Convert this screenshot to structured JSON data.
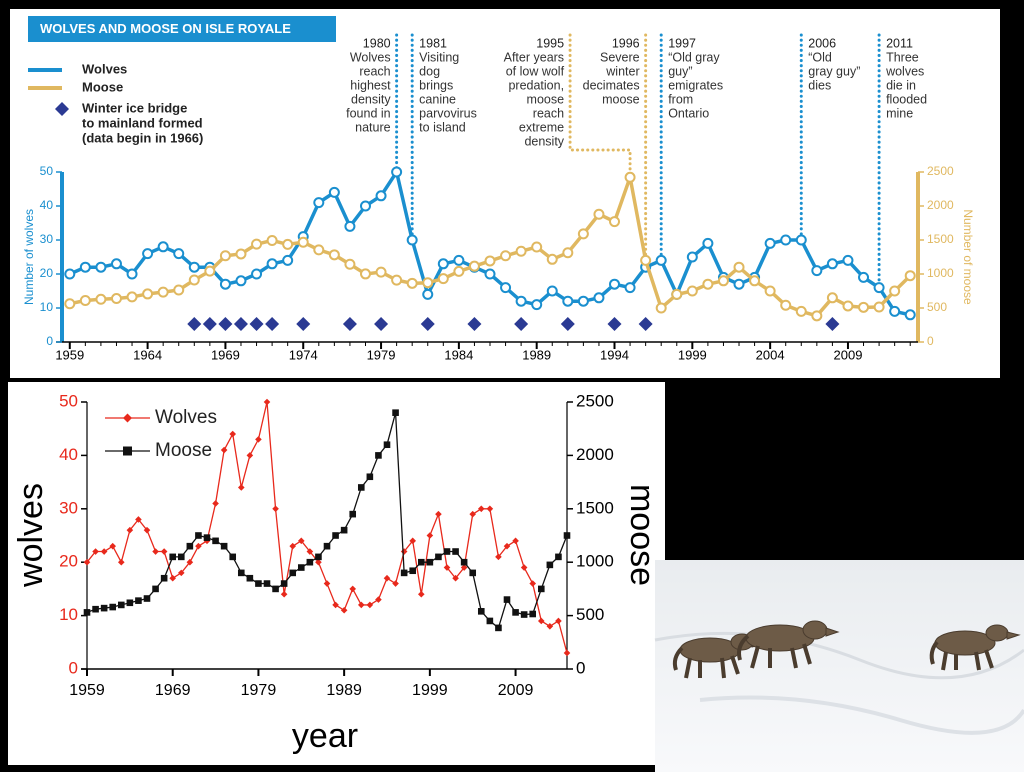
{
  "chart_data": [
    {
      "type": "line",
      "title": "WOLVES AND MOOSE ON ISLE ROYALE",
      "ylabel": "Number of wolves",
      "y2label": "Number of moose",
      "x": [
        1959,
        1960,
        1961,
        1962,
        1963,
        1964,
        1965,
        1966,
        1967,
        1968,
        1969,
        1970,
        1971,
        1972,
        1973,
        1974,
        1975,
        1976,
        1977,
        1978,
        1979,
        1980,
        1981,
        1982,
        1983,
        1984,
        1985,
        1986,
        1987,
        1988,
        1989,
        1990,
        1991,
        1992,
        1993,
        1994,
        1995,
        1996,
        1997,
        1998,
        1999,
        2000,
        2001,
        2002,
        2003,
        2004,
        2005,
        2006,
        2007,
        2008,
        2009,
        2010,
        2011,
        2012,
        2013
      ],
      "series": [
        {
          "name": "Wolves",
          "color": "#1a8fcf",
          "values": [
            20,
            22,
            22,
            23,
            20,
            26,
            28,
            26,
            22,
            22,
            17,
            18,
            20,
            23,
            24,
            31,
            41,
            44,
            34,
            40,
            43,
            50,
            30,
            14,
            23,
            24,
            22,
            20,
            16,
            12,
            11,
            15,
            12,
            12,
            13,
            17,
            16,
            22,
            24,
            14,
            25,
            29,
            19,
            17,
            19,
            29,
            30,
            30,
            21,
            23,
            24,
            19,
            16,
            9,
            8
          ]
        },
        {
          "name": "Moose",
          "color": "#e0b860",
          "axis": "y2",
          "values": [
            563,
            610,
            628,
            639,
            663,
            707,
            733,
            765,
            912,
            1042,
            1268,
            1295,
            1439,
            1493,
            1435,
            1467,
            1355,
            1282,
            1143,
            1001,
            1028,
            910,
            863,
            872,
            932,
            1038,
            1115,
            1192,
            1268,
            1335,
            1397,
            1216,
            1313,
            1590,
            1879,
            1770,
            2422,
            1200,
            500,
            700,
            750,
            850,
            900,
            1100,
            900,
            750,
            540,
            450,
            385,
            650,
            530,
            510,
            515,
            750,
            975
          ]
        }
      ],
      "markers": {
        "name_lines": [
          "Winter ice bridge",
          "to mainland formed",
          "(data begin in 1966)"
        ],
        "color": "#2b3a93",
        "x": [
          1967,
          1968,
          1969,
          1970,
          1971,
          1972,
          1974,
          1977,
          1979,
          1982,
          1985,
          1988,
          1991,
          1994,
          1996,
          2008
        ]
      },
      "annotations": [
        {
          "year": 1980,
          "color": "#1a8fcf",
          "lines": [
            "Wolves",
            "reach",
            "highest",
            "density",
            "found in",
            "nature"
          ]
        },
        {
          "year": 1981,
          "color": "#1a8fcf",
          "lines": [
            "Visiting",
            "dog",
            "brings",
            "canine",
            "parvovirus",
            "to island"
          ]
        },
        {
          "year": 1995,
          "color": "#e0b860",
          "lines": [
            "After years",
            "of low wolf",
            "predation,",
            "moose",
            "reach",
            "extreme",
            "density"
          ]
        },
        {
          "year": 1996,
          "color": "#e0b860",
          "lines": [
            "Severe",
            "winter",
            "decimates",
            "moose"
          ]
        },
        {
          "year": 1997,
          "color": "#1a8fcf",
          "lines": [
            "“Old gray",
            "guy”",
            "emigrates",
            "from",
            "Ontario"
          ]
        },
        {
          "year": 2006,
          "color": "#1a8fcf",
          "lines": [
            "“Old",
            "gray guy”",
            "dies"
          ]
        },
        {
          "year": 2011,
          "color": "#1a8fcf",
          "lines": [
            "Three",
            "wolves",
            "die in",
            "flooded",
            "mine"
          ]
        }
      ],
      "xlim": [
        1958.5,
        2013.5
      ],
      "xticks": [
        1959,
        1964,
        1969,
        1974,
        1979,
        1984,
        1989,
        1994,
        1999,
        2004,
        2009
      ],
      "ylim": [
        0,
        50
      ],
      "yticks": [
        0,
        10,
        20,
        30,
        40,
        50
      ],
      "y2lim": [
        0,
        2500
      ],
      "y2ticks": [
        0,
        500,
        1000,
        1500,
        2000,
        2500
      ]
    },
    {
      "type": "line",
      "xlabel": "year",
      "ylabel": "wolves",
      "y2label": "moose",
      "x": [
        1959,
        1960,
        1961,
        1962,
        1963,
        1964,
        1965,
        1966,
        1967,
        1968,
        1969,
        1970,
        1971,
        1972,
        1973,
        1974,
        1975,
        1976,
        1977,
        1978,
        1979,
        1980,
        1981,
        1982,
        1983,
        1984,
        1985,
        1986,
        1987,
        1988,
        1989,
        1990,
        1991,
        1992,
        1993,
        1994,
        1995,
        1996,
        1997,
        1998,
        1999,
        2000,
        2001,
        2002,
        2003,
        2004,
        2005,
        2006,
        2007,
        2008,
        2009,
        2010,
        2011,
        2012,
        2013,
        2014,
        2015
      ],
      "series": [
        {
          "name": "Wolves",
          "color": "#e8291c",
          "values": [
            20,
            22,
            22,
            23,
            20,
            26,
            28,
            26,
            22,
            22,
            17,
            18,
            20,
            23,
            24,
            31,
            41,
            44,
            34,
            40,
            43,
            50,
            30,
            14,
            23,
            24,
            22,
            20,
            16,
            12,
            11,
            15,
            12,
            12,
            13,
            17,
            16,
            22,
            24,
            14,
            25,
            29,
            19,
            17,
            19,
            29,
            30,
            30,
            21,
            23,
            24,
            19,
            16,
            9,
            8,
            9,
            3
          ]
        },
        {
          "name": "Moose",
          "color": "#111111",
          "axis": "y2",
          "values": [
            530,
            560,
            570,
            580,
            600,
            620,
            640,
            660,
            750,
            850,
            1050,
            1050,
            1150,
            1250,
            1230,
            1200,
            1150,
            1050,
            900,
            850,
            800,
            800,
            750,
            800,
            900,
            950,
            1000,
            1050,
            1150,
            1250,
            1300,
            1450,
            1700,
            1800,
            2000,
            2100,
            2400,
            900,
            920,
            1000,
            1000,
            1050,
            1100,
            1100,
            1000,
            900,
            540,
            450,
            385,
            650,
            530,
            510,
            515,
            750,
            975,
            1050,
            1250
          ]
        }
      ],
      "xlim": [
        1959,
        2015
      ],
      "xticks": [
        1959,
        1969,
        1979,
        1989,
        1999,
        2009
      ],
      "ylim": [
        0,
        50
      ],
      "yticks": [
        0,
        10,
        20,
        30,
        40,
        50
      ],
      "y2lim": [
        0,
        2500
      ],
      "y2ticks": [
        0,
        500,
        1000,
        1500,
        2000,
        2500
      ]
    }
  ]
}
